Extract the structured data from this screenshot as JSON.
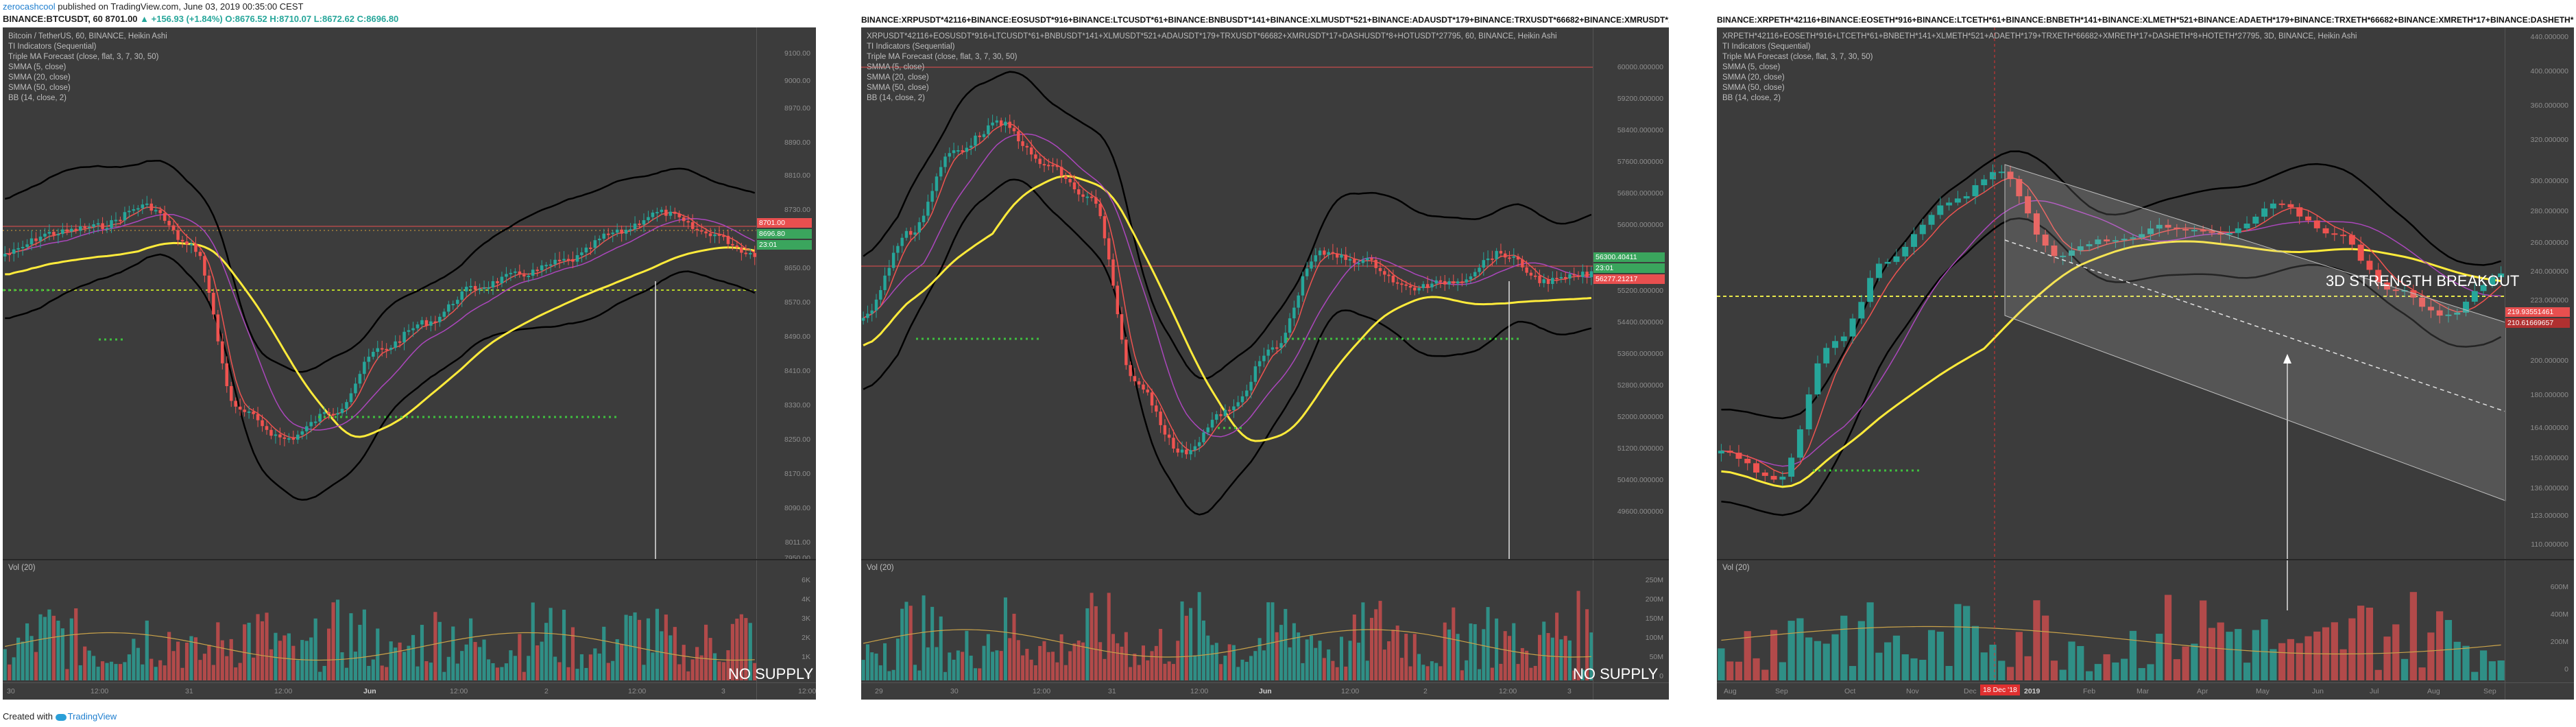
{
  "header": {
    "author": "zerocashcool",
    "published": "published on TradingView.com, June 03, 2019 00:35:00 CEST",
    "ticker": "BINANCE:BTCUSDT, 60",
    "last": "8701.00",
    "change": "▲ +156.93 (+1.84%)",
    "ohlc": "O:8676.52 H:8710.07 L:8672.62 C:8696.80"
  },
  "footer": {
    "prefix": "Created with",
    "brand": "TradingView"
  },
  "colors": {
    "bull": "#26a69a",
    "bear": "#ef5350",
    "sma5": "#ef5350",
    "smma20": "#ab47bc",
    "smma50": "#ffeb3b",
    "bb": "#000000",
    "forecast": "#2e7d32",
    "background": "#3c3c3c"
  },
  "panels": [
    {
      "title": "",
      "info": [
        "Bitcoin / TetherUS, 60, BINANCE, Heikin Ashi",
        "TI Indicators (Sequential)",
        "Triple MA Forecast (close, flat, 3, 7, 30, 50)",
        "SMMA (5, close)",
        "SMMA (20, close)",
        "SMMA (50, close)",
        "BB (14, close, 2)"
      ],
      "yticks": [
        "9100.00",
        "9000.00",
        "8970.00",
        "8890.00",
        "8810.00",
        "8730.00",
        "8650.00",
        "8570.00",
        "8490.00",
        "8410.00",
        "8330.00",
        "8250.00",
        "8170.00",
        "8090.00",
        "8011.00",
        "7950.00"
      ],
      "price_tags": [
        {
          "text": "8701.00",
          "color": "red"
        },
        {
          "text": "8696.80",
          "color": "green"
        },
        {
          "text": "23:01",
          "color": "green"
        }
      ],
      "vol_label": "Vol (20)",
      "vol_ticks": [
        "6K",
        "4K",
        "3K",
        "2K",
        "1K",
        "0"
      ],
      "xticks": [
        "30",
        "12:00",
        "31",
        "12:00",
        "Jun",
        "12:00",
        "2",
        "12:00",
        "3",
        "12:00"
      ],
      "annotation": "NO SUPPLY"
    },
    {
      "title": "BINANCE:XRPUSDT*42116+BINANCE:EOSUSDT*916+BINANCE:LTCUSDT*61+BINANCE:BNBUSDT*141+BINANCE:XLMUSDT*521+BINANCE:ADAUSDT*179+BINANCE:TRXUSDT*66682+BINANCE:XMRUSDT*17+BINANCE:",
      "info": [
        "XRPUSDT*42116+EOSUSDT*916+LTCUSDT*61+BNBUSDT*141+XLMUSDT*521+ADAUSDT*179+TRXUSDT*66682+XMRUSDT*17+DASHUSDT*8+HOTUSDT*27795, 60, BINANCE, Heikin Ashi",
        "TI Indicators (Sequential)",
        "Triple MA Forecast (close, flat, 3, 7, 30, 50)",
        "SMMA (5, close)",
        "SMMA (20, close)",
        "SMMA (50, close)",
        "BB (14, close, 2)"
      ],
      "yticks": [
        "60000.000000",
        "59200.000000",
        "58400.000000",
        "57600.000000",
        "56800.000000",
        "56000.000000",
        "55200.000000",
        "54400.000000",
        "53600.000000",
        "52800.000000",
        "52000.000000",
        "51200.000000",
        "50400.000000",
        "49600.000000"
      ],
      "price_tags": [
        {
          "text": "56300.40411",
          "color": "green"
        },
        {
          "text": "23:01",
          "color": "green"
        },
        {
          "text": "56277.21217",
          "color": "red"
        }
      ],
      "vol_label": "Vol (20)",
      "vol_ticks": [
        "250M",
        "200M",
        "150M",
        "100M",
        "50M",
        "0"
      ],
      "xticks": [
        "29",
        "30",
        "12:00",
        "31",
        "12:00",
        "Jun",
        "12:00",
        "2",
        "12:00",
        "3"
      ],
      "annotation": "NO SUPPLY"
    },
    {
      "title": "BINANCE:XRPETH*42116+BINANCE:EOSETH*916+BINANCE:LTCETH*61+BINANCE:BNBETH*141+BINANCE:XLMETH*521+BINANCE:ADAETH*179+BINANCE:TRXETH*66682+BINANCE:XMRETH*17+BINANCE:DASHETH*",
      "info": [
        "XRPETH*42116+EOSETH*916+LTCETH*61+BNBETH*141+XLMETH*521+ADAETH*179+TRXETH*66682+XMRETH*17+DASHETH*8+HOTETH*27795, 3D, BINANCE, Heikin Ashi",
        "TI Indicators (Sequential)",
        "Triple MA Forecast (close, flat, 3, 7, 30, 50)",
        "SMMA (5, close)",
        "SMMA (20, close)",
        "SMMA (50, close)",
        "BB (14, close, 2)"
      ],
      "yticks": [
        "440.000000",
        "400.000000",
        "360.000000",
        "320.000000",
        "300.000000",
        "280.000000",
        "260.000000",
        "240.000000",
        "223.000000",
        "200.000000",
        "180.000000",
        "164.000000",
        "150.000000",
        "136.000000",
        "123.000000",
        "110.000000"
      ],
      "price_tags": [
        {
          "text": "219.93551461",
          "color": "red"
        },
        {
          "text": "210.61669657",
          "color": "darkred"
        }
      ],
      "vol_label": "Vol (20)",
      "vol_ticks": [
        "600M",
        "400M",
        "200M",
        "0"
      ],
      "xticks": [
        "Aug",
        "Sep",
        "Oct",
        "Nov",
        "Dec",
        "2019",
        "Feb",
        "Mar",
        "Apr",
        "May",
        "Jun",
        "Jul",
        "Aug",
        "Sep"
      ],
      "date_tag": "18 Dec '18",
      "annotation": "3D STRENGTH BREAKOUT"
    }
  ]
}
